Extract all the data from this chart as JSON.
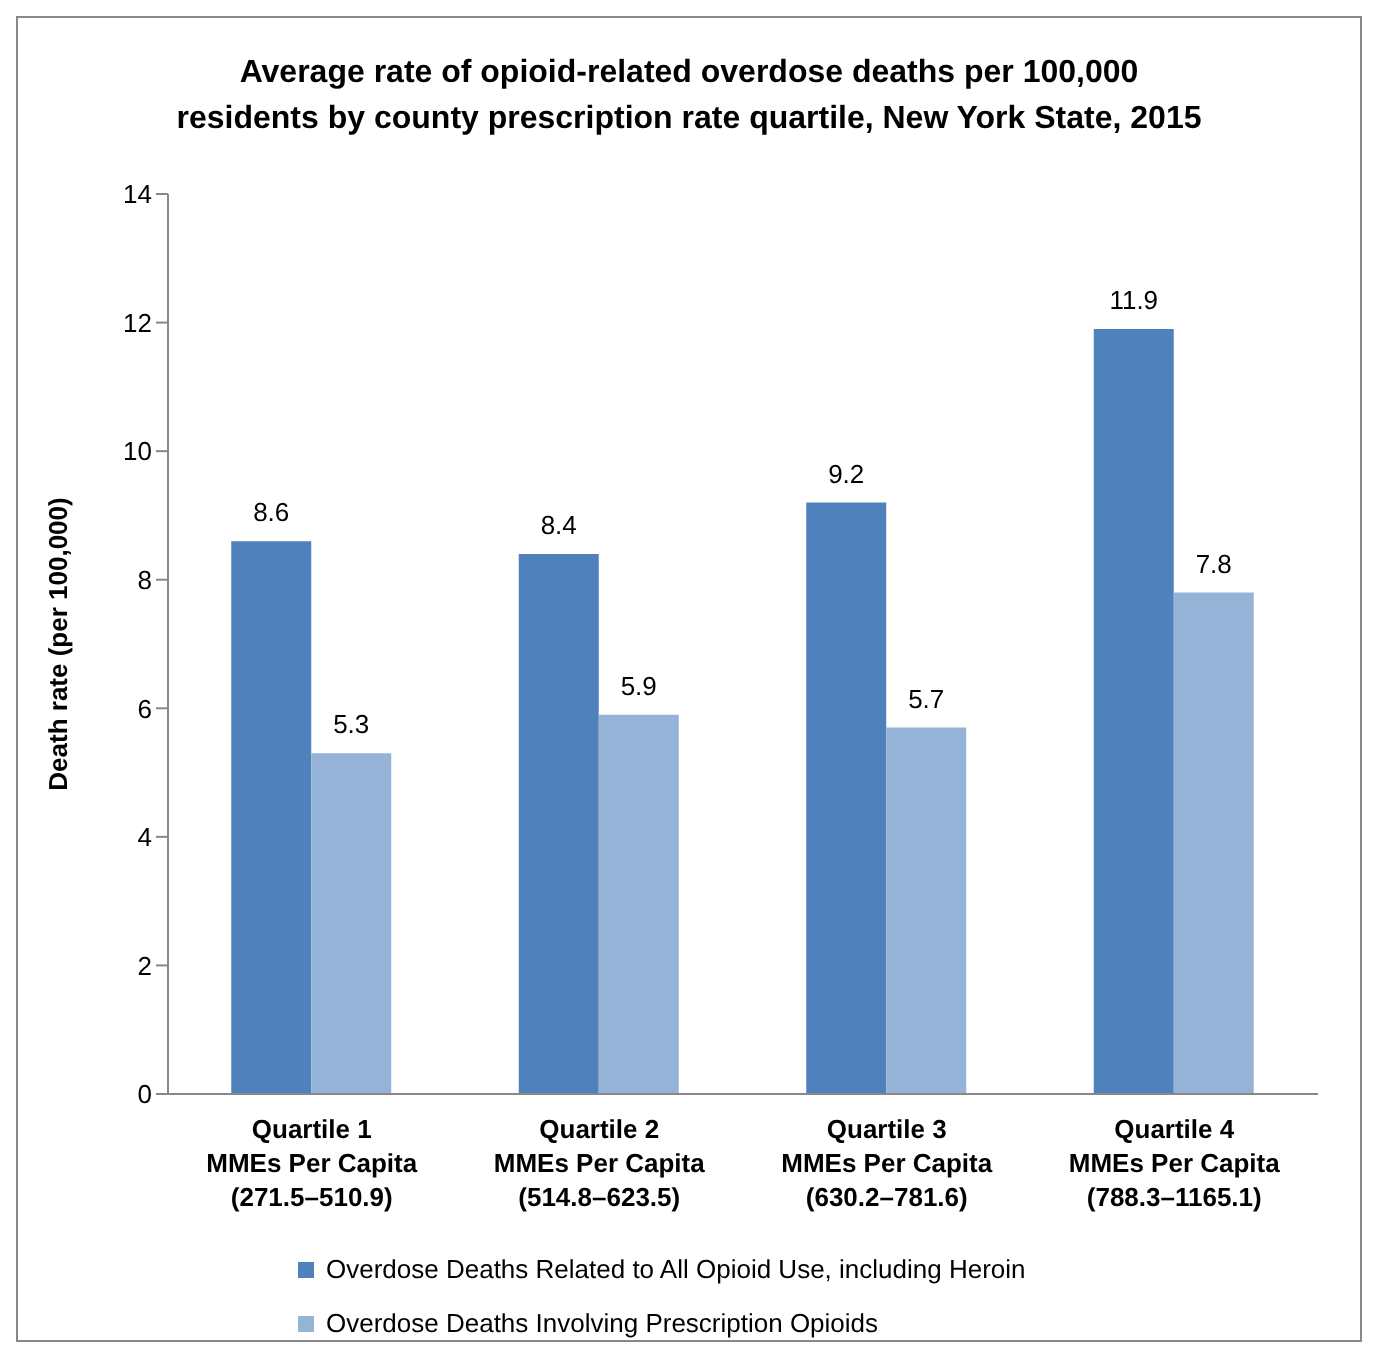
{
  "chart_data": {
    "type": "bar",
    "title": "Average rate of opioid-related overdose deaths per 100,000\nresidents by county prescription rate quartile, New York State, 2015",
    "ylabel": "Death rate (per 100,000)",
    "categories": [
      "Quartile 1\nMMEs Per Capita\n(271.5–510.9)",
      "Quartile 2\nMMEs Per Capita\n(514.8–623.5)",
      "Quartile 3\nMMEs Per Capita\n(630.2–781.6)",
      "Quartile 4\nMMEs Per Capita\n(788.3–1165.1)"
    ],
    "series": [
      {
        "name": "Overdose Deaths Related to All Opioid Use, including Heroin",
        "color": "#4f81bd",
        "values": [
          8.6,
          8.4,
          9.2,
          11.9
        ]
      },
      {
        "name": "Overdose Deaths Involving Prescription Opioids",
        "color": "#95b3d7",
        "values": [
          5.3,
          5.9,
          5.7,
          7.8
        ]
      }
    ],
    "ylim": [
      0,
      14
    ],
    "yticks": [
      0,
      2,
      4,
      6,
      8,
      10,
      12,
      14
    ],
    "legend": "bottom",
    "data_labels": true
  }
}
